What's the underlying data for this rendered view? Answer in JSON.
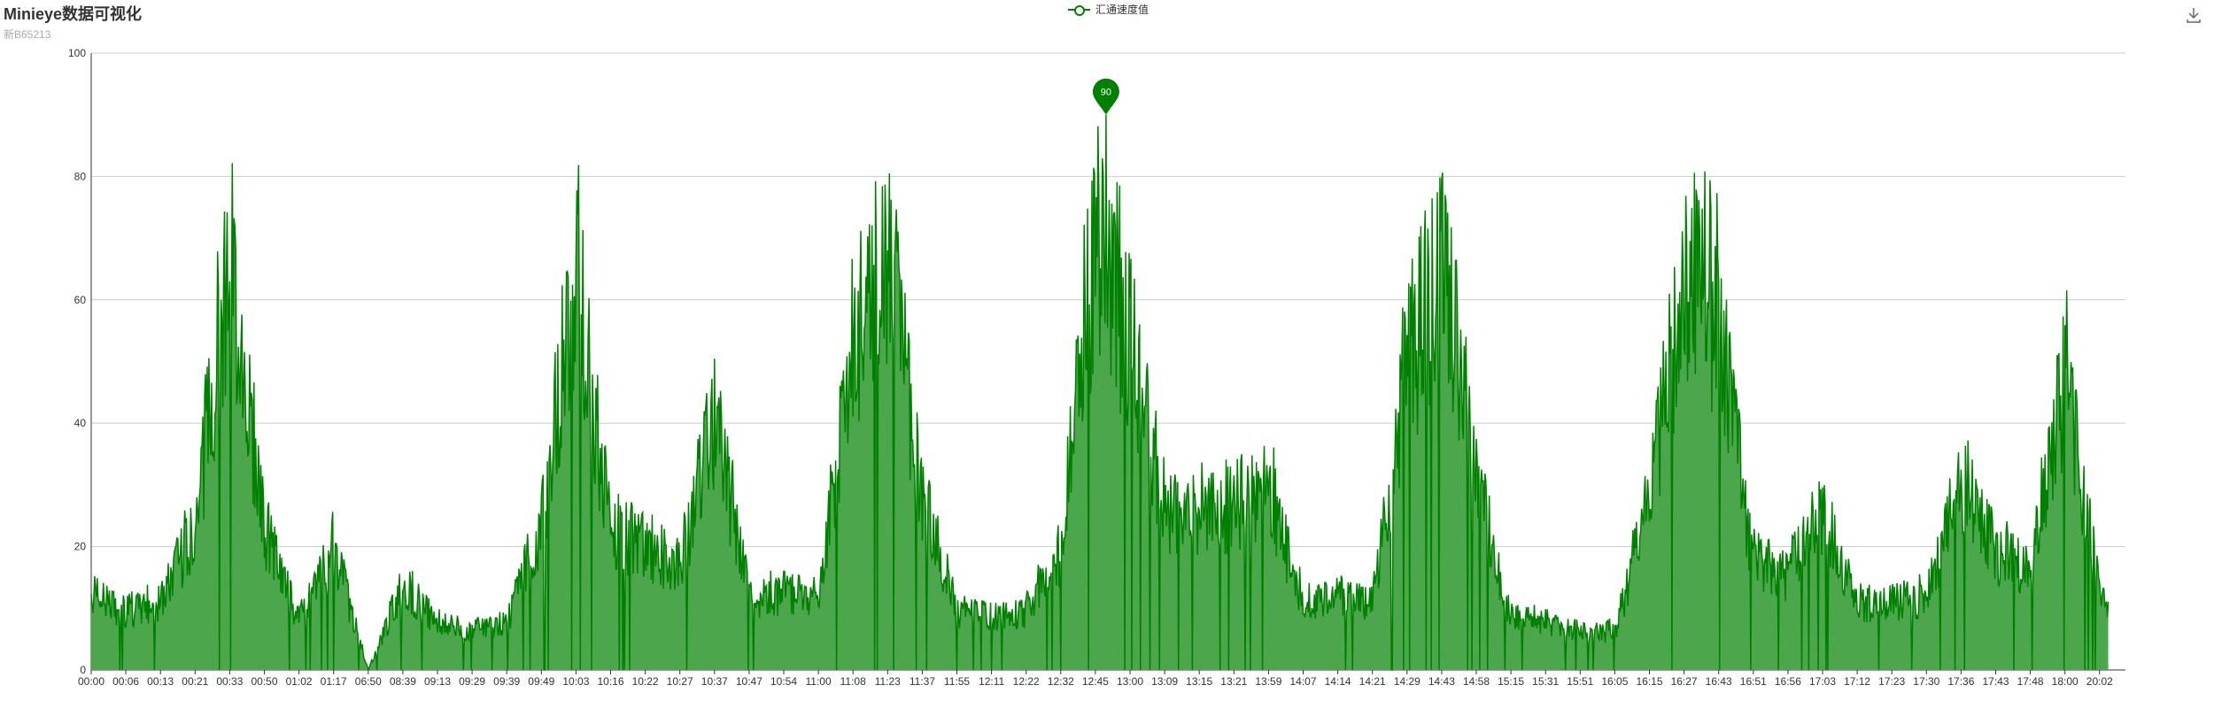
{
  "title": "Minieye数据可视化",
  "subtitle": "新B65213",
  "legend": {
    "label": "汇通速度值"
  },
  "toolbox": {
    "save_icon": "download-icon"
  },
  "colors": {
    "line": "#008000",
    "area": "#4ca64c",
    "axis": "#333333",
    "grid": "#cccccc"
  },
  "chart_data": {
    "type": "area",
    "title": "Minieye数据可视化",
    "subtitle": "新B65213",
    "xlabel": "",
    "ylabel": "",
    "ylim": [
      0,
      100
    ],
    "yticks": [
      0,
      20,
      40,
      60,
      80,
      100
    ],
    "grid": true,
    "legend_position": "top-center",
    "x_tick_labels": [
      "00:00",
      "00:06",
      "00:13",
      "00:21",
      "00:33",
      "00:50",
      "01:02",
      "01:17",
      "06:50",
      "08:39",
      "09:13",
      "09:29",
      "09:39",
      "09:49",
      "10:03",
      "10:16",
      "10:22",
      "10:27",
      "10:37",
      "10:47",
      "10:54",
      "11:00",
      "11:08",
      "11:23",
      "11:37",
      "11:55",
      "12:11",
      "12:22",
      "12:32",
      "12:45",
      "13:00",
      "13:09",
      "13:15",
      "13:21",
      "13:59",
      "14:07",
      "14:14",
      "14:21",
      "14:29",
      "14:43",
      "14:58",
      "15:15",
      "15:31",
      "15:51",
      "16:05",
      "16:15",
      "16:27",
      "16:43",
      "16:51",
      "16:56",
      "17:03",
      "17:12",
      "17:23",
      "17:30",
      "17:36",
      "17:43",
      "17:48",
      "18:00",
      "20:02"
    ],
    "series": [
      {
        "name": "汇通速度值",
        "type": "line-area",
        "note_values": "one value per x tick segment (sampled peaks/levels)",
        "values": [
          16,
          12,
          14,
          30,
          87,
          30,
          10,
          25,
          0,
          18,
          10,
          8,
          10,
          30,
          86,
          28,
          25,
          22,
          53,
          15,
          16,
          15,
          69,
          89,
          36,
          12,
          11,
          12,
          25,
          90,
          69,
          32,
          32,
          34,
          38,
          14,
          15,
          14,
          62,
          86,
          39,
          11,
          10,
          8,
          8,
          35,
          84,
          74,
          22,
          20,
          33,
          14,
          14,
          15,
          40,
          25,
          20,
          61,
          16
        ]
      }
    ],
    "max_point": {
      "x": "12:45",
      "value": 90,
      "label": "90"
    }
  }
}
